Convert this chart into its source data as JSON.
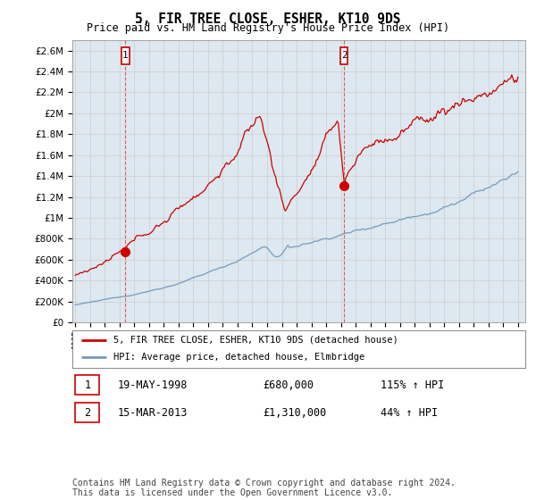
{
  "title": "5, FIR TREE CLOSE, ESHER, KT10 9DS",
  "subtitle": "Price paid vs. HM Land Registry's House Price Index (HPI)",
  "legend_entry1": "5, FIR TREE CLOSE, ESHER, KT10 9DS (detached house)",
  "legend_entry2": "HPI: Average price, detached house, Elmbridge",
  "transaction1_date": "19-MAY-1998",
  "transaction1_price": 680000,
  "transaction1_label": "115% ↑ HPI",
  "transaction2_date": "15-MAR-2013",
  "transaction2_price": 1310000,
  "transaction2_label": "44% ↑ HPI",
  "footer": "Contains HM Land Registry data © Crown copyright and database right 2024.\nThis data is licensed under the Open Government Licence v3.0.",
  "red_color": "#cc0000",
  "blue_color": "#7799bb",
  "vline_color": "#dd4444",
  "grid_color": "#cccccc",
  "background_color": "#ffffff",
  "plot_bg_color": "#dde8f0",
  "ylim": [
    0,
    2700000
  ],
  "xlim_start": 1994.8,
  "xlim_end": 2025.5,
  "transaction1_x": 1998.38,
  "transaction2_x": 2013.21,
  "title_fontsize": 11,
  "subtitle_fontsize": 9,
  "footer_fontsize": 7
}
